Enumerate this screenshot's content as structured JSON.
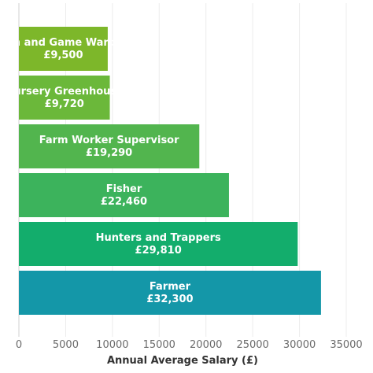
{
  "chart_data": {
    "type": "bar",
    "orientation": "horizontal",
    "categories": [
      "Fish and Game Warden",
      "Nursery Greenhouse",
      "Farm Worker Supervisor",
      "Fisher",
      "Hunters and Trappers",
      "Farmer"
    ],
    "values": [
      9500,
      9720,
      19290,
      22460,
      29810,
      32300
    ],
    "value_labels": [
      "£9,500",
      "£9,720",
      "£19,290",
      "£22,460",
      "£29,810",
      "£32,300"
    ],
    "colors": [
      "#7db72a",
      "#6bb83a",
      "#52b54e",
      "#3cb35c",
      "#13ad6c",
      "#1497a8"
    ],
    "xlabel": "Annual Average Salary (£)",
    "ylabel": "",
    "xlim": [
      0,
      35000
    ],
    "xticks": [
      "0",
      "5000",
      "10000",
      "15000",
      "20000",
      "25000",
      "30000",
      "35000"
    ],
    "grid": true
  }
}
